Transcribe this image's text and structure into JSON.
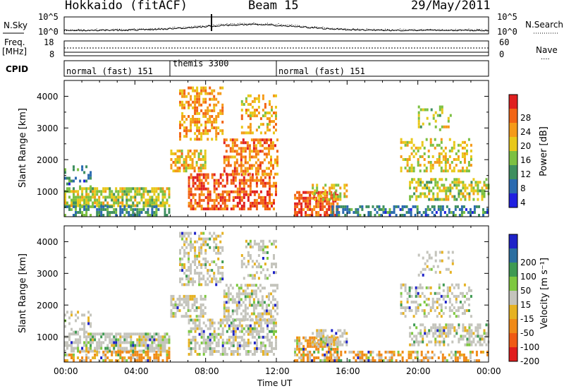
{
  "header": {
    "station": "Hokkaido (fitACF)",
    "beam": "Beam 15",
    "date": "29/May/2011"
  },
  "side_labels": {
    "nsky": "N.Sky",
    "nsearch": "N.Search",
    "freq": "Freq.",
    "freq_unit": "[MHz]",
    "nave": "Nave",
    "cpid": "CPID"
  },
  "cpid_segments": [
    {
      "label": "normal (fast) 151",
      "start_hour": 0
    },
    {
      "label": "themis 3300",
      "start_hour": 6
    },
    {
      "label": "normal (fast) 151",
      "start_hour": 12
    }
  ],
  "noise_panel": {
    "left_ticks": [
      "10^5",
      "10^0"
    ],
    "right_ticks": [
      "10^5",
      "10^0"
    ]
  },
  "freq_panel": {
    "left_ticks": [
      "18",
      "8"
    ],
    "right_ticks": [
      "60",
      "0"
    ]
  },
  "colors": {
    "power": [
      "#2020e0",
      "#2a6ab0",
      "#3e8f5f",
      "#7cc042",
      "#e8c81a",
      "#f59a18",
      "#f26414",
      "#e02020"
    ],
    "velocity": [
      "#1e22c8",
      "#2b6ea0",
      "#3e9a52",
      "#7ec840",
      "#c4c4bc",
      "#e6b222",
      "#f08a18",
      "#f05a14",
      "#e01c1c"
    ]
  },
  "chart_data": [
    {
      "type": "heatmap",
      "name": "power",
      "ylabel": "Slant Range [km]",
      "yticks": [
        "1000",
        "2000",
        "3000",
        "4000"
      ],
      "ylim": [
        200,
        4500
      ],
      "xlim": [
        0,
        24
      ],
      "colorbar_label": "Power [dB]",
      "colorbar_ticks": [
        "4",
        "8",
        "12",
        "16",
        "20",
        "24",
        "28"
      ],
      "colorbar_range": [
        0,
        32
      ]
    },
    {
      "type": "heatmap",
      "name": "velocity",
      "ylabel": "Slant Range [km]",
      "yticks": [
        "1000",
        "2000",
        "3000",
        "4000"
      ],
      "ylim": [
        200,
        4500
      ],
      "xlim": [
        0,
        24
      ],
      "colorbar_label": "Velocity [m s⁻¹]",
      "colorbar_ticks": [
        "-200",
        "-100",
        "-50",
        "-15",
        "15",
        "50",
        "100",
        "200"
      ]
    }
  ],
  "xaxis": {
    "ticks": [
      "00:00",
      "04:00",
      "08:00",
      "12:00",
      "16:00",
      "20:00",
      "00:00"
    ],
    "label": "Time UT"
  }
}
